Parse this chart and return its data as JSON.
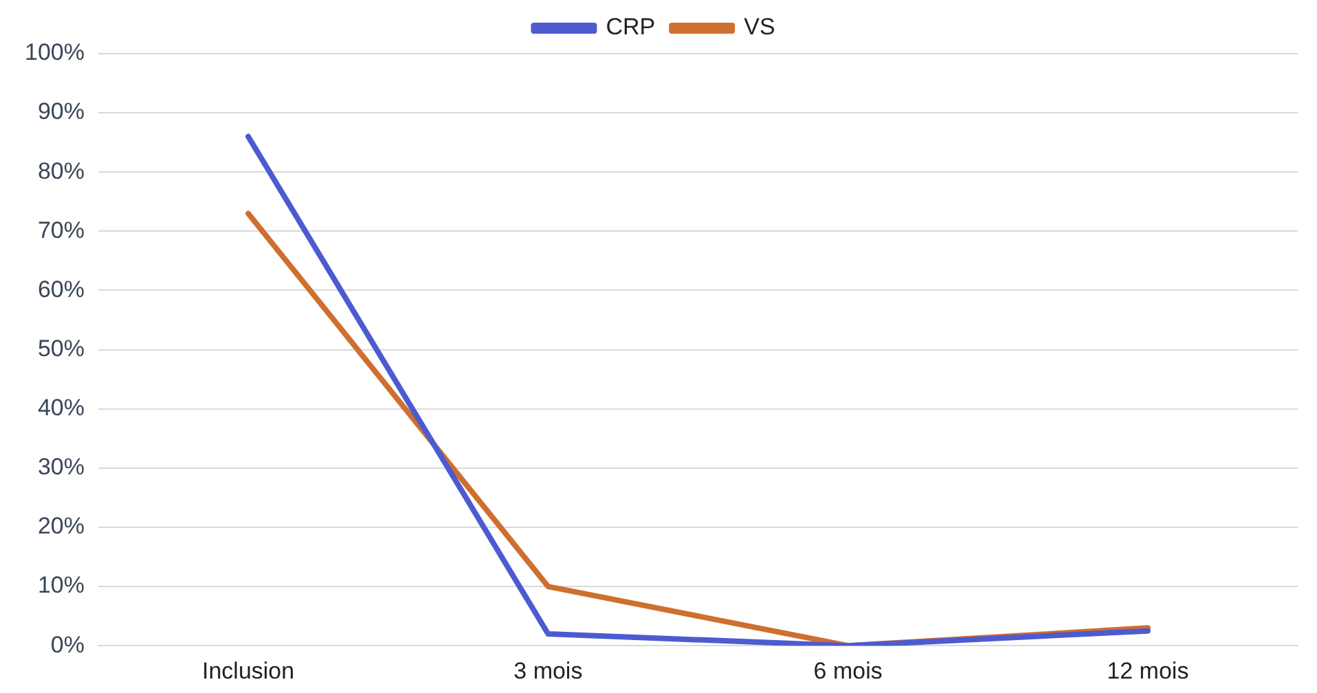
{
  "chart_data": {
    "type": "line",
    "categories": [
      "Inclusion",
      "3 mois",
      "6 mois",
      "12 mois"
    ],
    "series": [
      {
        "name": "CRP",
        "color": "#4c5bd0",
        "values": [
          86,
          2,
          0,
          2.5
        ]
      },
      {
        "name": "VS",
        "color": "#cf6f2e",
        "values": [
          73,
          10,
          0,
          3
        ]
      }
    ],
    "ylim": [
      0,
      100
    ],
    "yticks": [
      {
        "value": 0,
        "label": "0%"
      },
      {
        "value": 10,
        "label": "10%"
      },
      {
        "value": 20,
        "label": "20%"
      },
      {
        "value": 30,
        "label": "30%"
      },
      {
        "value": 40,
        "label": "40%"
      },
      {
        "value": 50,
        "label": "50%"
      },
      {
        "value": 60,
        "label": "60%"
      },
      {
        "value": 70,
        "label": "70%"
      },
      {
        "value": 80,
        "label": "80%"
      },
      {
        "value": 90,
        "label": "90%"
      },
      {
        "value": 100,
        "label": "100%"
      }
    ],
    "grid": "y",
    "legend": "top",
    "marker": "none",
    "line_style": "solid"
  }
}
